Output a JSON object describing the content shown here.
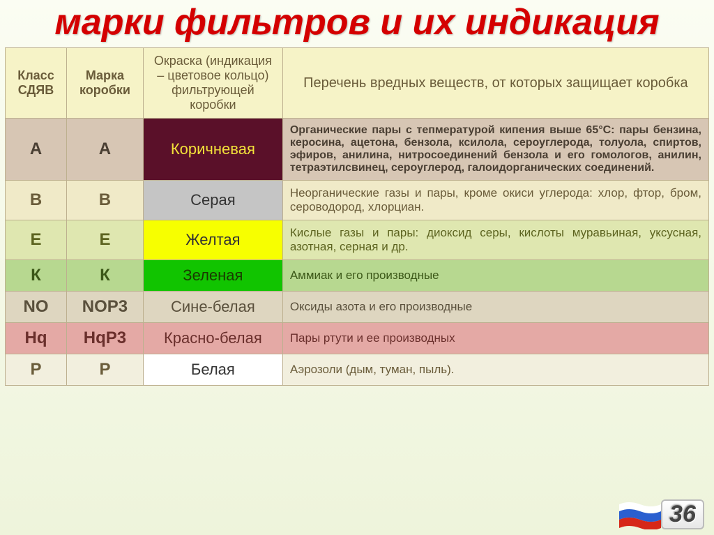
{
  "title": "марки фильтров и их индикация",
  "headers": {
    "c0": "Класс СДЯВ",
    "c1": "Марка коробки",
    "c2": "Окраска (индикация – цветовое кольцо) фильтрующей коробки",
    "c3": "Перечень вредных веществ, от которых защищает коробка"
  },
  "rows": [
    {
      "klass": "А",
      "mark": "А",
      "colorName": "Коричневая",
      "desc": "Органические пары с тепмературой кипения выше 65°С: пары бензина, керосина, ацетона, бензола, ксилола, сероуглерода, толуола, спиртов, эфиров, анилина, нитросоединений бензола и его гомологов, анилин, тетраэтилсвинец, сероуглерод, галоидорганических соединений.",
      "rowBg": "#d7c6b4",
      "rowFg": "#4a3f33",
      "cellBg": "#5a1029",
      "cellFg": "#f2e13a",
      "descFg": "#4a3f33",
      "bold": true
    },
    {
      "klass": "В",
      "mark": "В",
      "colorName": "Серая",
      "desc": "Неорганические газы и пары, кроме окиси углерода: хлор, фтор, бром, сероводород, хлорциан.",
      "rowBg": "#f0eac8",
      "rowFg": "#6a5c3a",
      "cellBg": "#c5c5c5",
      "cellFg": "#333333",
      "descFg": "#6a5c3a",
      "bold": false
    },
    {
      "klass": "Е",
      "mark": "Е",
      "colorName": "Желтая",
      "desc": "Кислые газы и пары: диоксид серы, кислоты муравьиная, уксусная, азотная, серная и др.",
      "rowBg": "#dfe7b0",
      "rowFg": "#5c631f",
      "cellBg": "#f7ff00",
      "cellFg": "#333333",
      "descFg": "#5c631f",
      "bold": false
    },
    {
      "klass": "К",
      "mark": "К",
      "colorName": "Зеленая",
      "desc": "Аммиак и его производные",
      "rowBg": "#b7d890",
      "rowFg": "#3c5818",
      "cellBg": "#11c400",
      "cellFg": "#1a3900",
      "descFg": "#3c5818",
      "bold": false
    },
    {
      "klass": "NO",
      "mark": "NOP3",
      "colorName": "Сине-белая",
      "desc": "Оксиды азота и его производные",
      "rowBg": "#ded6c0",
      "rowFg": "#5a503c",
      "cellBg": "",
      "cellFg": "#5a503c",
      "descFg": "#5a503c",
      "bold": false
    },
    {
      "klass": "Hq",
      "mark": "HqP3",
      "colorName": "Красно-белая",
      "desc": "Пары ртути и ее производных",
      "rowBg": "#e4a9a5",
      "rowFg": "#6a2f2c",
      "cellBg": "",
      "cellFg": "#6a2f2c",
      "descFg": "#6a2f2c",
      "bold": false
    },
    {
      "klass": "Р",
      "mark": "Р",
      "colorName": "Белая",
      "desc": "Аэрозоли (дым, туман, пыль).",
      "rowBg": "#f2efde",
      "rowFg": "#6a5c3a",
      "cellBg": "#ffffff",
      "cellFg": "#333333",
      "descFg": "#6a5c3a",
      "bold": false
    }
  ],
  "slideNumber": "36",
  "flag": {
    "stripes": [
      "#ffffff",
      "#2a5fcf",
      "#d62718"
    ]
  }
}
